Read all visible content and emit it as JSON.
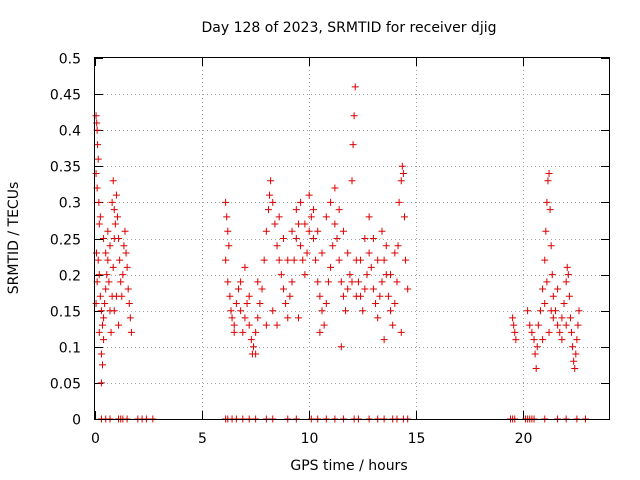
{
  "chart_data": {
    "type": "scatter",
    "title": "Day 128 of 2023, SRMTID for receiver djig",
    "xlabel": "GPS time / hours",
    "ylabel": "SRMTID / TECUs",
    "xlim": [
      0,
      24
    ],
    "ylim": [
      0,
      0.5
    ],
    "xticks": [
      0,
      5,
      10,
      15,
      20
    ],
    "yticks": [
      0,
      0.05,
      0.1,
      0.15,
      0.2,
      0.25,
      0.3,
      0.35,
      0.4,
      0.45,
      0.5
    ],
    "ytick_labels": [
      "0",
      "0.05",
      "0.1",
      "0.15",
      "0.2",
      "0.25",
      "0.3",
      "0.35",
      "0.4",
      "0.45",
      "0.5"
    ],
    "grid": true,
    "marker": "+",
    "color": "#dd0000",
    "series": [
      {
        "points": [
          [
            0.05,
            0.42
          ],
          [
            0.08,
            0.41
          ],
          [
            0.1,
            0.4
          ],
          [
            0.12,
            0.38
          ],
          [
            0.15,
            0.36
          ],
          [
            0.05,
            0.34
          ],
          [
            0.1,
            0.32
          ],
          [
            0.18,
            0.3
          ],
          [
            0.2,
            0.27
          ],
          [
            0.07,
            0.23
          ],
          [
            0.15,
            0.22
          ],
          [
            0.2,
            0.2
          ],
          [
            0.1,
            0.19
          ],
          [
            0.25,
            0.17
          ],
          [
            0.3,
            0.15
          ],
          [
            0.05,
            0.16
          ],
          [
            0.35,
            0.13
          ],
          [
            0.4,
            0.11
          ],
          [
            0.3,
            0.09
          ],
          [
            0.35,
            0.075
          ],
          [
            0.3,
            0.05
          ],
          [
            0.4,
            0.14
          ],
          [
            0.45,
            0.16
          ],
          [
            0.5,
            0.18
          ],
          [
            0.55,
            0.2
          ],
          [
            0.6,
            0.22
          ],
          [
            0.65,
            0.19
          ],
          [
            0.7,
            0.15
          ],
          [
            0.75,
            0.12
          ],
          [
            0.8,
            0.17
          ],
          [
            0.85,
            0.21
          ],
          [
            0.9,
            0.25
          ],
          [
            0.95,
            0.27
          ],
          [
            0.4,
            0.25
          ],
          [
            0.5,
            0.23
          ],
          [
            0.6,
            0.26
          ],
          [
            0.7,
            0.24
          ],
          [
            0.8,
            0.3
          ],
          [
            0.85,
            0.33
          ],
          [
            0.9,
            0.29
          ],
          [
            1.0,
            0.31
          ],
          [
            1.05,
            0.28
          ],
          [
            1.1,
            0.25
          ],
          [
            1.15,
            0.22
          ],
          [
            1.2,
            0.19
          ],
          [
            1.25,
            0.17
          ],
          [
            1.3,
            0.2
          ],
          [
            1.35,
            0.24
          ],
          [
            1.4,
            0.26
          ],
          [
            1.45,
            0.23
          ],
          [
            1.5,
            0.21
          ],
          [
            1.55,
            0.18
          ],
          [
            1.6,
            0.16
          ],
          [
            1.65,
            0.14
          ],
          [
            1.7,
            0.12
          ],
          [
            0.9,
            0.15
          ],
          [
            1.0,
            0.17
          ],
          [
            1.1,
            0.13
          ],
          [
            0.2,
            0.12
          ],
          [
            0.25,
            0.28
          ],
          [
            6.1,
            0.3
          ],
          [
            6.15,
            0.28
          ],
          [
            6.2,
            0.26
          ],
          [
            6.25,
            0.24
          ],
          [
            6.1,
            0.22
          ],
          [
            6.2,
            0.19
          ],
          [
            6.3,
            0.17
          ],
          [
            6.35,
            0.15
          ],
          [
            6.4,
            0.14
          ],
          [
            6.5,
            0.13
          ],
          [
            6.6,
            0.16
          ],
          [
            6.7,
            0.18
          ],
          [
            6.8,
            0.15
          ],
          [
            6.9,
            0.12
          ],
          [
            7.0,
            0.14
          ],
          [
            7.1,
            0.16
          ],
          [
            7.2,
            0.13
          ],
          [
            7.3,
            0.11
          ],
          [
            7.35,
            0.09
          ],
          [
            7.4,
            0.1
          ],
          [
            7.5,
            0.12
          ],
          [
            7.6,
            0.14
          ],
          [
            7.7,
            0.16
          ],
          [
            7.8,
            0.18
          ],
          [
            7.9,
            0.22
          ],
          [
            8.0,
            0.26
          ],
          [
            8.1,
            0.29
          ],
          [
            8.15,
            0.31
          ],
          [
            8.2,
            0.33
          ],
          [
            8.3,
            0.3
          ],
          [
            8.4,
            0.27
          ],
          [
            8.5,
            0.24
          ],
          [
            8.6,
            0.22
          ],
          [
            8.7,
            0.2
          ],
          [
            8.8,
            0.18
          ],
          [
            8.9,
            0.16
          ],
          [
            9.0,
            0.14
          ],
          [
            9.1,
            0.17
          ],
          [
            9.2,
            0.19
          ],
          [
            9.3,
            0.22
          ],
          [
            9.4,
            0.25
          ],
          [
            9.5,
            0.27
          ],
          [
            9.6,
            0.24
          ],
          [
            9.7,
            0.22
          ],
          [
            9.8,
            0.2
          ],
          [
            9.9,
            0.23
          ],
          [
            10.0,
            0.26
          ],
          [
            10.1,
            0.28
          ],
          [
            10.2,
            0.25
          ],
          [
            10.3,
            0.22
          ],
          [
            10.4,
            0.19
          ],
          [
            10.5,
            0.17
          ],
          [
            10.6,
            0.15
          ],
          [
            10.7,
            0.13
          ],
          [
            10.8,
            0.16
          ],
          [
            10.9,
            0.19
          ],
          [
            11.0,
            0.21
          ],
          [
            11.1,
            0.24
          ],
          [
            11.2,
            0.27
          ],
          [
            11.3,
            0.25
          ],
          [
            11.4,
            0.22
          ],
          [
            11.5,
            0.19
          ],
          [
            11.6,
            0.17
          ],
          [
            11.7,
            0.15
          ],
          [
            11.8,
            0.18
          ],
          [
            11.9,
            0.2
          ],
          [
            12.0,
            0.33
          ],
          [
            12.05,
            0.38
          ],
          [
            12.1,
            0.42
          ],
          [
            12.15,
            0.46
          ],
          [
            12.2,
            0.22
          ],
          [
            12.3,
            0.19
          ],
          [
            12.4,
            0.17
          ],
          [
            12.5,
            0.15
          ],
          [
            12.6,
            0.18
          ],
          [
            12.7,
            0.2
          ],
          [
            12.8,
            0.23
          ],
          [
            12.9,
            0.21
          ],
          [
            13.0,
            0.18
          ],
          [
            13.1,
            0.16
          ],
          [
            13.2,
            0.14
          ],
          [
            13.3,
            0.17
          ],
          [
            13.4,
            0.19
          ],
          [
            13.5,
            0.22
          ],
          [
            13.6,
            0.2
          ],
          [
            13.7,
            0.17
          ],
          [
            13.8,
            0.15
          ],
          [
            13.9,
            0.13
          ],
          [
            14.0,
            0.16
          ],
          [
            14.1,
            0.19
          ],
          [
            14.15,
            0.24
          ],
          [
            14.2,
            0.3
          ],
          [
            14.3,
            0.33
          ],
          [
            14.35,
            0.35
          ],
          [
            14.4,
            0.34
          ],
          [
            14.45,
            0.28
          ],
          [
            14.5,
            0.22
          ],
          [
            14.6,
            0.18
          ],
          [
            14.3,
            0.12
          ],
          [
            13.5,
            0.11
          ],
          [
            11.5,
            0.1
          ],
          [
            10.5,
            0.12
          ],
          [
            9.5,
            0.14
          ],
          [
            8.5,
            0.13
          ],
          [
            7.5,
            0.09
          ],
          [
            6.5,
            0.12
          ],
          [
            6.8,
            0.19
          ],
          [
            7.0,
            0.21
          ],
          [
            7.2,
            0.17
          ],
          [
            7.6,
            0.19
          ],
          [
            8.0,
            0.13
          ],
          [
            8.3,
            0.15
          ],
          [
            8.6,
            0.28
          ],
          [
            8.8,
            0.25
          ],
          [
            9.0,
            0.22
          ],
          [
            9.2,
            0.26
          ],
          [
            9.4,
            0.29
          ],
          [
            9.6,
            0.3
          ],
          [
            9.8,
            0.27
          ],
          [
            10.0,
            0.31
          ],
          [
            10.2,
            0.29
          ],
          [
            10.4,
            0.26
          ],
          [
            10.6,
            0.23
          ],
          [
            10.8,
            0.28
          ],
          [
            11.0,
            0.3
          ],
          [
            11.2,
            0.32
          ],
          [
            11.4,
            0.29
          ],
          [
            11.6,
            0.26
          ],
          [
            11.8,
            0.23
          ],
          [
            12.0,
            0.19
          ],
          [
            12.2,
            0.17
          ],
          [
            12.4,
            0.22
          ],
          [
            12.6,
            0.25
          ],
          [
            12.8,
            0.28
          ],
          [
            13.0,
            0.25
          ],
          [
            13.2,
            0.22
          ],
          [
            13.4,
            0.26
          ],
          [
            13.6,
            0.24
          ],
          [
            13.8,
            0.2
          ],
          [
            14.0,
            0.23
          ],
          [
            19.5,
            0.14
          ],
          [
            19.55,
            0.13
          ],
          [
            19.6,
            0.12
          ],
          [
            19.65,
            0.11
          ],
          [
            20.2,
            0.15
          ],
          [
            20.3,
            0.13
          ],
          [
            20.4,
            0.12
          ],
          [
            20.5,
            0.11
          ],
          [
            20.55,
            0.09
          ],
          [
            20.6,
            0.07
          ],
          [
            20.65,
            0.1
          ],
          [
            20.7,
            0.13
          ],
          [
            20.8,
            0.15
          ],
          [
            20.9,
            0.18
          ],
          [
            21.0,
            0.22
          ],
          [
            21.05,
            0.26
          ],
          [
            21.1,
            0.3
          ],
          [
            21.15,
            0.33
          ],
          [
            21.2,
            0.34
          ],
          [
            21.25,
            0.29
          ],
          [
            21.3,
            0.24
          ],
          [
            21.35,
            0.2
          ],
          [
            21.4,
            0.17
          ],
          [
            21.5,
            0.15
          ],
          [
            21.6,
            0.13
          ],
          [
            21.7,
            0.12
          ],
          [
            21.8,
            0.14
          ],
          [
            21.9,
            0.16
          ],
          [
            22.0,
            0.19
          ],
          [
            22.05,
            0.21
          ],
          [
            22.1,
            0.2
          ],
          [
            22.15,
            0.17
          ],
          [
            22.2,
            0.14
          ],
          [
            22.25,
            0.12
          ],
          [
            22.3,
            0.1
          ],
          [
            22.35,
            0.08
          ],
          [
            22.4,
            0.07
          ],
          [
            22.45,
            0.09
          ],
          [
            22.5,
            0.11
          ],
          [
            22.55,
            0.13
          ],
          [
            22.6,
            0.15
          ],
          [
            21.0,
            0.16
          ],
          [
            21.2,
            0.12
          ],
          [
            21.4,
            0.14
          ],
          [
            21.6,
            0.18
          ],
          [
            21.8,
            0.11
          ],
          [
            22.0,
            0.13
          ],
          [
            20.9,
            0.11
          ],
          [
            21.1,
            0.19
          ],
          [
            21.3,
            0.15
          ]
        ]
      }
    ],
    "zero_marker_x": [
      0.3,
      0.5,
      0.7,
      1.1,
      1.2,
      1.3,
      1.5,
      2.0,
      2.2,
      2.4,
      2.7,
      6.1,
      6.2,
      6.4,
      6.6,
      6.9,
      7.2,
      7.5,
      8.0,
      8.3,
      9.0,
      9.4,
      10.1,
      10.4,
      10.8,
      11.2,
      11.6,
      12.1,
      12.3,
      12.8,
      13.2,
      13.5,
      13.9,
      14.1,
      14.4,
      14.6,
      19.4,
      19.5,
      19.6,
      20.1,
      20.2,
      20.3,
      20.4,
      20.5,
      21.0,
      21.6,
      22.0,
      22.5,
      22.9
    ]
  }
}
